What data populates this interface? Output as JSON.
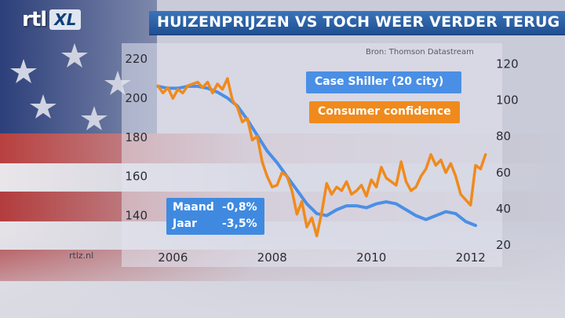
{
  "header": {
    "logo_rtl": "rtl",
    "logo_xl": "XL",
    "title": "HUIZENPRIJZEN VS TOCH WEER VERDER TERUG"
  },
  "source": "Bron: Thomson Datastream",
  "footer": {
    "site": "rtlz.nl"
  },
  "stats": {
    "month_label": "Maand",
    "month_value": "-0,8%",
    "year_label": "Jaar",
    "year_value": "-3,5%"
  },
  "colors": {
    "case_shiller": "#4a8fe6",
    "consumer_confidence": "#f08a1c",
    "title_bar": "#2a62a8"
  },
  "chart_data": {
    "type": "line",
    "title": "HUIZENPRIJZEN VS TOCH WEER VERDER TERUG",
    "x_range": [
      2005.6,
      2012.4
    ],
    "x_ticks": [
      2006,
      2008,
      2010,
      2012
    ],
    "x_tick_labels": [
      "2006",
      "2008",
      "2010",
      "2012"
    ],
    "y_left": {
      "range": [
        125,
        222
      ],
      "ticks": [
        140,
        160,
        180,
        200,
        220
      ],
      "tick_labels": [
        "140",
        "160",
        "180",
        "200",
        "220"
      ]
    },
    "y_right": {
      "range": [
        20,
        125
      ],
      "ticks": [
        20,
        40,
        60,
        80,
        100,
        120
      ],
      "tick_labels": [
        "20",
        "40",
        "60",
        "80",
        "100",
        "120"
      ]
    },
    "series": [
      {
        "name": "Case Shiller (20 city)",
        "axis": "left",
        "x": [
          2005.7,
          2005.9,
          2006.1,
          2006.3,
          2006.5,
          2006.7,
          2006.9,
          2007.1,
          2007.3,
          2007.5,
          2007.7,
          2007.9,
          2008.1,
          2008.3,
          2008.5,
          2008.7,
          2008.9,
          2009.1,
          2009.3,
          2009.5,
          2009.7,
          2009.9,
          2010.1,
          2010.3,
          2010.5,
          2010.7,
          2010.9,
          2011.1,
          2011.3,
          2011.5,
          2011.7,
          2011.9,
          2012.1
        ],
        "y": [
          206,
          205,
          205,
          206,
          206,
          205,
          203,
          200,
          196,
          189,
          181,
          173,
          167,
          160,
          153,
          146,
          141,
          140,
          143,
          145,
          145,
          144,
          146,
          147,
          146,
          143,
          140,
          138,
          140,
          142,
          141,
          137,
          135
        ]
      },
      {
        "name": "Consumer confidence",
        "axis": "right",
        "x": [
          2005.7,
          2005.8,
          2005.9,
          2006.0,
          2006.1,
          2006.2,
          2006.3,
          2006.4,
          2006.5,
          2006.6,
          2006.7,
          2006.8,
          2006.9,
          2007.0,
          2007.1,
          2007.2,
          2007.3,
          2007.4,
          2007.5,
          2007.6,
          2007.7,
          2007.8,
          2007.9,
          2008.0,
          2008.1,
          2008.2,
          2008.3,
          2008.4,
          2008.5,
          2008.6,
          2008.7,
          2008.8,
          2008.9,
          2009.0,
          2009.1,
          2009.2,
          2009.3,
          2009.4,
          2009.5,
          2009.6,
          2009.7,
          2009.8,
          2009.9,
          2010.0,
          2010.1,
          2010.2,
          2010.3,
          2010.4,
          2010.5,
          2010.6,
          2010.7,
          2010.8,
          2010.9,
          2011.0,
          2011.1,
          2011.2,
          2011.3,
          2011.4,
          2011.5,
          2011.6,
          2011.7,
          2011.8,
          2011.9,
          2012.0,
          2012.1,
          2012.2,
          2012.3
        ],
        "y": [
          108,
          104,
          107,
          101,
          106,
          104,
          108,
          109,
          110,
          107,
          110,
          104,
          109,
          106,
          112,
          100,
          96,
          88,
          90,
          78,
          80,
          66,
          58,
          52,
          53,
          60,
          58,
          50,
          37,
          44,
          30,
          35,
          25,
          38,
          54,
          48,
          52,
          50,
          55,
          48,
          50,
          53,
          47,
          56,
          52,
          63,
          57,
          55,
          53,
          66,
          55,
          50,
          52,
          58,
          62,
          70,
          64,
          67,
          60,
          65,
          58,
          48,
          45,
          42,
          64,
          62,
          70
        ]
      }
    ],
    "legend_placement": "top-right",
    "grid": false
  }
}
